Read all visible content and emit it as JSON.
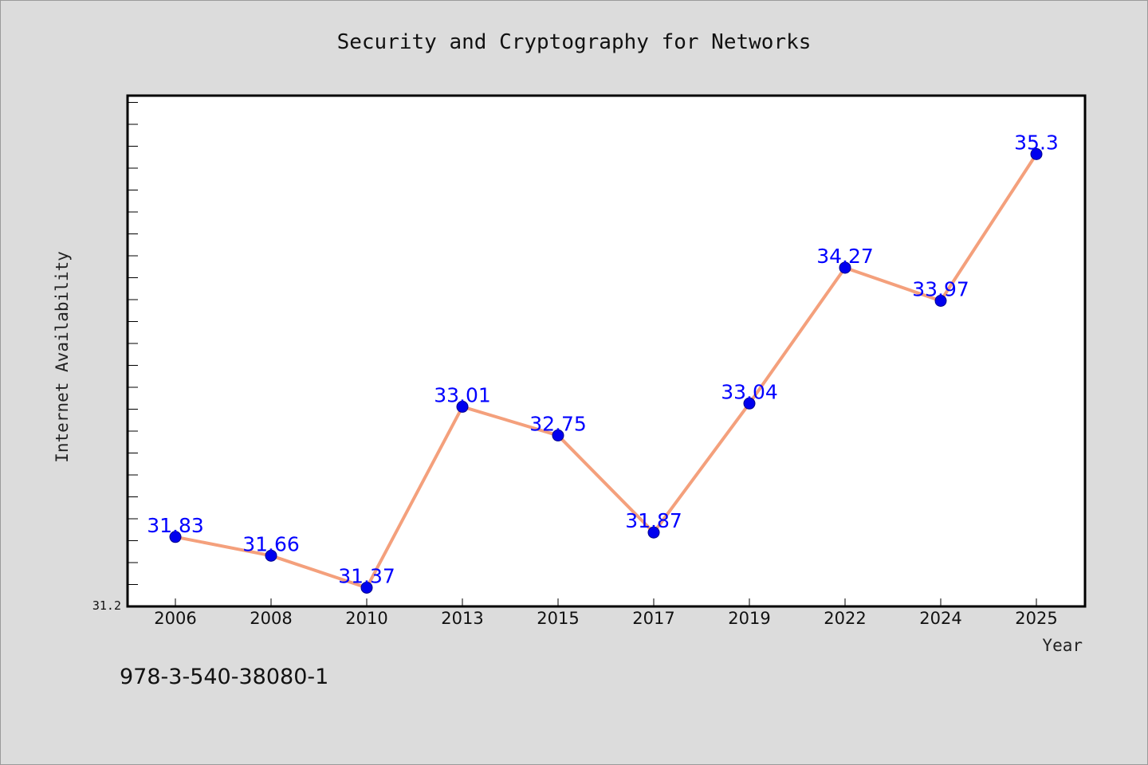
{
  "chart_data": {
    "type": "line",
    "title": "Security and Cryptography for Networks",
    "xlabel": "Year",
    "ylabel": "Internet Availability",
    "categories": [
      "2006",
      "2008",
      "2010",
      "2013",
      "2015",
      "2017",
      "2019",
      "2022",
      "2024",
      "2025"
    ],
    "series": [
      {
        "values": [
          31.83,
          31.66,
          31.37,
          33.01,
          32.75,
          31.87,
          33.04,
          34.27,
          33.97,
          35.3
        ]
      }
    ],
    "ylim": [
      31.2,
      35.83
    ],
    "y_tick_labels": [
      "31.2"
    ],
    "grid": false,
    "colors": {
      "line": "#f4a07c",
      "marker": "#0000ee",
      "label": "#0000ff"
    }
  },
  "footer": {
    "isbn": "978-3-540-38080-1"
  }
}
